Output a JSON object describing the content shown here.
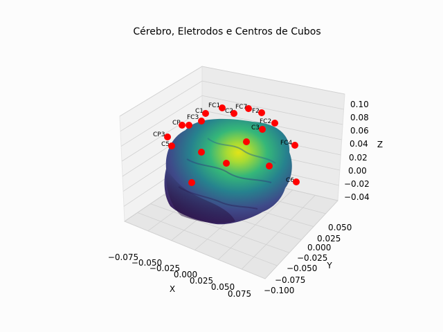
{
  "chart_data": {
    "type": "scatter",
    "title": "Cérebro, Eletrodos e Centros de Cubos",
    "xlabel": "X",
    "ylabel": "Y",
    "zlabel": "Z",
    "x_ticks": [
      "−0.075",
      "−0.050",
      "−0.025",
      "0.000",
      "0.025",
      "0.050",
      "0.075"
    ],
    "y_ticks": [
      "0.050",
      "0.025",
      "0.000",
      "−0.025",
      "−0.050",
      "−0.075",
      "−0.100"
    ],
    "z_ticks": [
      "0.10",
      "0.08",
      "0.06",
      "0.04",
      "0.02",
      "0.00",
      "−0.02",
      "−0.04"
    ],
    "grid": true,
    "colors": {
      "electrode": "#ff0000",
      "brain_low": "#3b1f5e",
      "brain_mid": "#21918c",
      "brain_high": "#c8e020"
    },
    "electrodes": [
      "C1",
      "FC1",
      "FC7",
      "C2",
      "F2",
      "CP",
      "FC3",
      "FC2",
      "C3",
      "CP3",
      "C5",
      "FC4",
      "C6"
    ],
    "cube_centers": "cube-centers"
  }
}
